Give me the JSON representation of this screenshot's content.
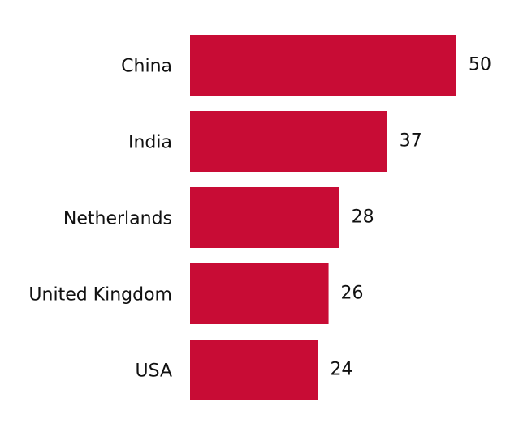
{
  "chart_data": {
    "type": "barh",
    "categories": [
      "China",
      "India",
      "Netherlands",
      "United Kingdom",
      "USA"
    ],
    "values": [
      50,
      37,
      28,
      26,
      24
    ],
    "color": "#c80c35"
  }
}
